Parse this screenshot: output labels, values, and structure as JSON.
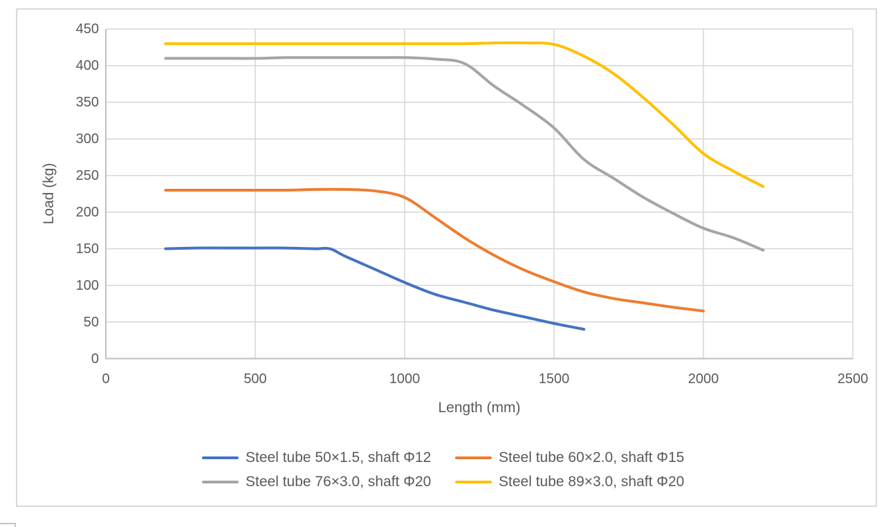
{
  "page": {
    "background": "#FFFFFF"
  },
  "chart_frame": {
    "border_color": "#D9D9D9",
    "background": "#FFFFFF"
  },
  "chart_data": {
    "type": "line",
    "title": "",
    "xlabel": "Length (mm)",
    "ylabel": "Load (kg)",
    "xlim": [
      0,
      2500
    ],
    "ylim": [
      0,
      450
    ],
    "x_ticks": [
      0,
      500,
      1000,
      1500,
      2000,
      2500
    ],
    "y_ticks": [
      0,
      50,
      100,
      150,
      200,
      250,
      300,
      350,
      400,
      450
    ],
    "grid": true,
    "legend_position": "bottom",
    "axis_text_color": "#595959",
    "gridline_color": "#D6D6D6",
    "axis_line_color": "#BFBFBF",
    "series": [
      {
        "name": "Steel tube 50×1.5, shaft Φ12",
        "color": "#4472C4",
        "points": [
          [
            200,
            150
          ],
          [
            300,
            151
          ],
          [
            400,
            151
          ],
          [
            500,
            151
          ],
          [
            600,
            151
          ],
          [
            700,
            150
          ],
          [
            750,
            150
          ],
          [
            800,
            140
          ],
          [
            900,
            122
          ],
          [
            1000,
            104
          ],
          [
            1100,
            88
          ],
          [
            1200,
            77
          ],
          [
            1300,
            66
          ],
          [
            1400,
            57
          ],
          [
            1500,
            48
          ],
          [
            1600,
            40
          ]
        ]
      },
      {
        "name": "Steel tube 60×2.0, shaft Φ15",
        "color": "#ED7D31",
        "points": [
          [
            200,
            230
          ],
          [
            300,
            230
          ],
          [
            400,
            230
          ],
          [
            500,
            230
          ],
          [
            600,
            230
          ],
          [
            700,
            231
          ],
          [
            800,
            231
          ],
          [
            900,
            229
          ],
          [
            1000,
            220
          ],
          [
            1100,
            193
          ],
          [
            1200,
            165
          ],
          [
            1300,
            141
          ],
          [
            1400,
            121
          ],
          [
            1500,
            105
          ],
          [
            1600,
            91
          ],
          [
            1700,
            82
          ],
          [
            1800,
            76
          ],
          [
            1900,
            70
          ],
          [
            2000,
            65
          ]
        ]
      },
      {
        "name": "Steel tube 76×3.0, shaft Φ20",
        "color": "#A5A5A5",
        "points": [
          [
            200,
            410
          ],
          [
            300,
            410
          ],
          [
            400,
            410
          ],
          [
            500,
            410
          ],
          [
            600,
            411
          ],
          [
            700,
            411
          ],
          [
            800,
            411
          ],
          [
            900,
            411
          ],
          [
            1000,
            411
          ],
          [
            1100,
            409
          ],
          [
            1200,
            403
          ],
          [
            1300,
            372
          ],
          [
            1400,
            345
          ],
          [
            1500,
            315
          ],
          [
            1600,
            272
          ],
          [
            1700,
            246
          ],
          [
            1800,
            220
          ],
          [
            1900,
            198
          ],
          [
            2000,
            178
          ],
          [
            2100,
            165
          ],
          [
            2200,
            148
          ]
        ]
      },
      {
        "name": "Steel tube 89×3.0, shaft Φ20",
        "color": "#FFC000",
        "points": [
          [
            200,
            430
          ],
          [
            300,
            430
          ],
          [
            400,
            430
          ],
          [
            500,
            430
          ],
          [
            600,
            430
          ],
          [
            700,
            430
          ],
          [
            800,
            430
          ],
          [
            900,
            430
          ],
          [
            1000,
            430
          ],
          [
            1100,
            430
          ],
          [
            1200,
            430
          ],
          [
            1300,
            431
          ],
          [
            1400,
            431
          ],
          [
            1500,
            429
          ],
          [
            1600,
            413
          ],
          [
            1700,
            389
          ],
          [
            1800,
            356
          ],
          [
            1900,
            319
          ],
          [
            2000,
            280
          ],
          [
            2100,
            256
          ],
          [
            2200,
            235
          ]
        ]
      }
    ]
  }
}
